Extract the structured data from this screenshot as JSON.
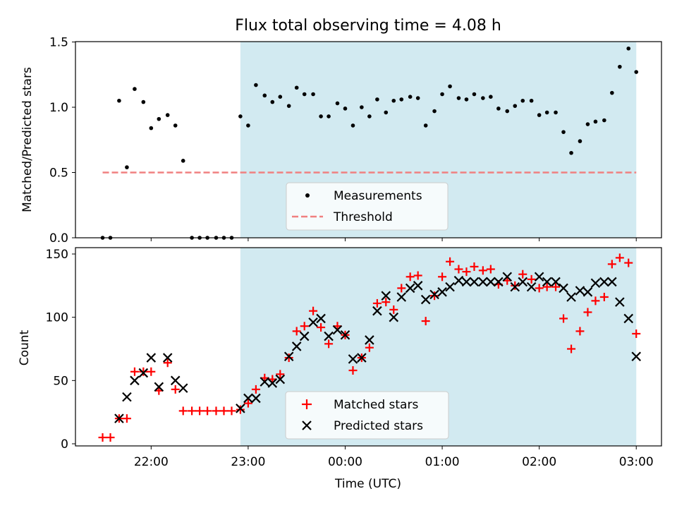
{
  "title": "Flux total observing time = 4.08 h",
  "colors": {
    "shade": "#add8e6",
    "measurement": "#000000",
    "threshold": "#f08080",
    "matched": "#ff0000",
    "predicted": "#000000"
  },
  "chart_data": [
    {
      "type": "scatter",
      "ylabel": "Matched/Predicted stars",
      "ylim": [
        0,
        1.5
      ],
      "yticks": [
        "0.0",
        "0.5",
        "1.0",
        "1.5"
      ],
      "shaded_span_hours": [
        22.92,
        27.0
      ],
      "threshold": {
        "name": "Threshold",
        "value": 0.5,
        "x_range_hours": [
          21.5,
          27.0
        ]
      },
      "legend": {
        "position": "bottom-center",
        "entries": [
          "Measurements",
          "Threshold"
        ]
      },
      "series": [
        {
          "name": "Measurements",
          "points": [
            [
              21.5,
              0
            ],
            [
              21.58,
              0
            ],
            [
              21.67,
              1.05
            ],
            [
              21.75,
              0.54
            ],
            [
              21.83,
              1.14
            ],
            [
              21.92,
              1.04
            ],
            [
              22.0,
              0.84
            ],
            [
              22.08,
              0.91
            ],
            [
              22.17,
              0.94
            ],
            [
              22.25,
              0.86
            ],
            [
              22.33,
              0.59
            ],
            [
              22.42,
              0
            ],
            [
              22.5,
              0
            ],
            [
              22.58,
              0
            ],
            [
              22.67,
              0
            ],
            [
              22.75,
              0
            ],
            [
              22.83,
              0
            ],
            [
              22.92,
              0.93
            ],
            [
              23.0,
              0.86
            ],
            [
              23.08,
              1.17
            ],
            [
              23.17,
              1.09
            ],
            [
              23.25,
              1.04
            ],
            [
              23.33,
              1.08
            ],
            [
              23.42,
              1.01
            ],
            [
              23.5,
              1.15
            ],
            [
              23.58,
              1.1
            ],
            [
              23.67,
              1.1
            ],
            [
              23.75,
              0.93
            ],
            [
              23.83,
              0.93
            ],
            [
              23.92,
              1.03
            ],
            [
              24.0,
              0.99
            ],
            [
              24.08,
              0.86
            ],
            [
              24.17,
              1.0
            ],
            [
              24.25,
              0.93
            ],
            [
              24.33,
              1.06
            ],
            [
              24.42,
              0.96
            ],
            [
              24.5,
              1.05
            ],
            [
              24.58,
              1.06
            ],
            [
              24.67,
              1.08
            ],
            [
              24.75,
              1.07
            ],
            [
              24.83,
              0.86
            ],
            [
              24.92,
              0.97
            ],
            [
              25.0,
              1.1
            ],
            [
              25.08,
              1.16
            ],
            [
              25.17,
              1.07
            ],
            [
              25.25,
              1.06
            ],
            [
              25.33,
              1.1
            ],
            [
              25.42,
              1.07
            ],
            [
              25.5,
              1.08
            ],
            [
              25.58,
              0.99
            ],
            [
              25.67,
              0.97
            ],
            [
              25.75,
              1.01
            ],
            [
              25.83,
              1.05
            ],
            [
              25.92,
              1.05
            ],
            [
              26.0,
              0.94
            ],
            [
              26.08,
              0.96
            ],
            [
              26.17,
              0.96
            ],
            [
              26.25,
              0.81
            ],
            [
              26.33,
              0.65
            ],
            [
              26.42,
              0.74
            ],
            [
              26.5,
              0.87
            ],
            [
              26.58,
              0.89
            ],
            [
              26.67,
              0.9
            ],
            [
              26.75,
              1.11
            ],
            [
              26.83,
              1.31
            ],
            [
              26.92,
              1.45
            ],
            [
              27.0,
              1.27
            ]
          ]
        }
      ]
    },
    {
      "type": "scatter",
      "xlabel": "Time (UTC)",
      "ylabel": "Count",
      "ylim": [
        0,
        150
      ],
      "yticks": [
        "0",
        "50",
        "100",
        "150"
      ],
      "xticks": [
        {
          "hours": 22,
          "label": "22:00"
        },
        {
          "hours": 23,
          "label": "23:00"
        },
        {
          "hours": 24,
          "label": "00:00"
        },
        {
          "hours": 25,
          "label": "01:00"
        },
        {
          "hours": 26,
          "label": "02:00"
        },
        {
          "hours": 27,
          "label": "03:00"
        }
      ],
      "shaded_span_hours": [
        22.92,
        27.0
      ],
      "legend": {
        "position": "bottom-center",
        "entries": [
          "Matched stars",
          "Predicted stars"
        ]
      },
      "series": [
        {
          "name": "Matched stars",
          "marker": "plus",
          "points": [
            [
              21.5,
              5
            ],
            [
              21.58,
              5
            ],
            [
              21.67,
              20
            ],
            [
              21.75,
              20
            ],
            [
              21.83,
              57
            ],
            [
              21.92,
              57
            ],
            [
              22.0,
              57
            ],
            [
              22.08,
              42
            ],
            [
              22.17,
              64
            ],
            [
              22.25,
              43
            ],
            [
              22.33,
              26
            ],
            [
              22.42,
              26
            ],
            [
              22.5,
              26
            ],
            [
              22.58,
              26
            ],
            [
              22.67,
              26
            ],
            [
              22.75,
              26
            ],
            [
              22.83,
              26
            ],
            [
              22.92,
              27
            ],
            [
              23.0,
              32
            ],
            [
              23.08,
              43
            ],
            [
              23.17,
              52
            ],
            [
              23.25,
              51
            ],
            [
              23.33,
              55
            ],
            [
              23.42,
              68
            ],
            [
              23.5,
              89
            ],
            [
              23.58,
              93
            ],
            [
              23.67,
              105
            ],
            [
              23.75,
              92
            ],
            [
              23.83,
              79
            ],
            [
              23.92,
              93
            ],
            [
              24.0,
              86
            ],
            [
              24.08,
              58
            ],
            [
              24.17,
              68
            ],
            [
              24.25,
              76
            ],
            [
              24.33,
              111
            ],
            [
              24.42,
              112
            ],
            [
              24.5,
              106
            ],
            [
              24.58,
              123
            ],
            [
              24.67,
              132
            ],
            [
              24.75,
              133
            ],
            [
              24.83,
              97
            ],
            [
              24.92,
              117
            ],
            [
              25.0,
              132
            ],
            [
              25.08,
              144
            ],
            [
              25.17,
              138
            ],
            [
              25.25,
              136
            ],
            [
              25.33,
              140
            ],
            [
              25.42,
              137
            ],
            [
              25.5,
              138
            ],
            [
              25.58,
              126
            ],
            [
              25.67,
              129
            ],
            [
              25.75,
              125
            ],
            [
              25.83,
              134
            ],
            [
              25.92,
              130
            ],
            [
              26.0,
              123
            ],
            [
              26.08,
              124
            ],
            [
              26.17,
              124
            ],
            [
              26.25,
              99
            ],
            [
              26.33,
              75
            ],
            [
              26.42,
              89
            ],
            [
              26.5,
              104
            ],
            [
              26.58,
              113
            ],
            [
              26.67,
              116
            ],
            [
              26.75,
              142
            ],
            [
              26.83,
              147
            ],
            [
              26.92,
              143
            ],
            [
              27.0,
              87
            ]
          ]
        },
        {
          "name": "Predicted stars",
          "marker": "x",
          "points": [
            [
              21.67,
              20
            ],
            [
              21.75,
              37
            ],
            [
              21.83,
              50
            ],
            [
              21.92,
              56
            ],
            [
              22.0,
              68
            ],
            [
              22.08,
              45
            ],
            [
              22.17,
              68
            ],
            [
              22.25,
              50
            ],
            [
              22.33,
              44
            ],
            [
              22.92,
              28
            ],
            [
              23.0,
              36
            ],
            [
              23.08,
              36
            ],
            [
              23.17,
              49
            ],
            [
              23.25,
              48
            ],
            [
              23.33,
              51
            ],
            [
              23.42,
              69
            ],
            [
              23.5,
              77
            ],
            [
              23.58,
              85
            ],
            [
              23.67,
              96
            ],
            [
              23.75,
              99
            ],
            [
              23.83,
              85
            ],
            [
              23.92,
              90
            ],
            [
              24.0,
              86
            ],
            [
              24.08,
              67
            ],
            [
              24.17,
              68
            ],
            [
              24.25,
              82
            ],
            [
              24.33,
              105
            ],
            [
              24.42,
              117
            ],
            [
              24.5,
              100
            ],
            [
              24.58,
              116
            ],
            [
              24.67,
              123
            ],
            [
              24.75,
              125
            ],
            [
              24.83,
              114
            ],
            [
              24.92,
              118
            ],
            [
              25.0,
              120
            ],
            [
              25.08,
              124
            ],
            [
              25.17,
              129
            ],
            [
              25.25,
              128
            ],
            [
              25.33,
              128
            ],
            [
              25.42,
              128
            ],
            [
              25.5,
              128
            ],
            [
              25.58,
              128
            ],
            [
              25.67,
              132
            ],
            [
              25.75,
              124
            ],
            [
              25.83,
              128
            ],
            [
              25.92,
              124
            ],
            [
              26.0,
              132
            ],
            [
              26.08,
              128
            ],
            [
              26.17,
              128
            ],
            [
              26.25,
              123
            ],
            [
              26.33,
              116
            ],
            [
              26.42,
              121
            ],
            [
              26.5,
              120
            ],
            [
              26.58,
              127
            ],
            [
              26.67,
              128
            ],
            [
              26.75,
              128
            ],
            [
              26.83,
              112
            ],
            [
              26.92,
              99
            ],
            [
              27.0,
              69
            ]
          ]
        }
      ]
    }
  ]
}
